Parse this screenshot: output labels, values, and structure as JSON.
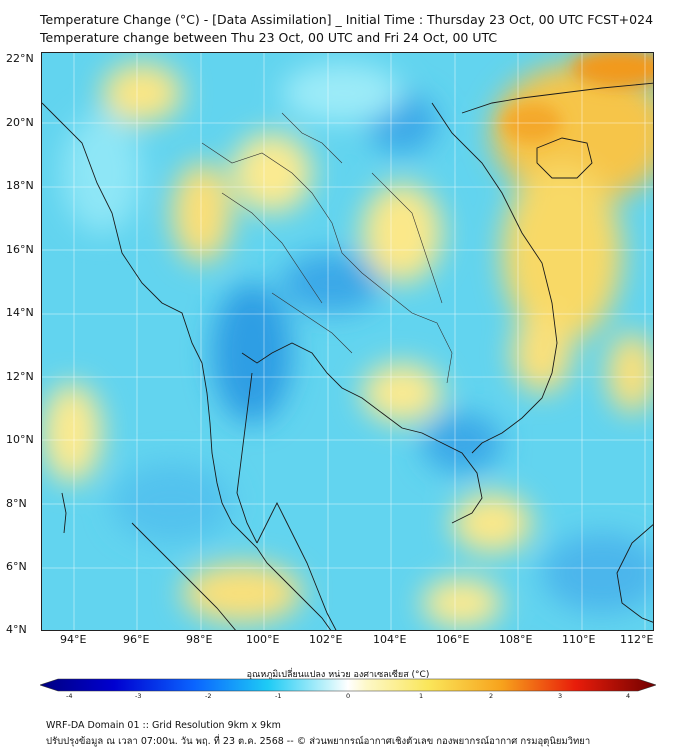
{
  "title_line1": "Temperature Change (°C) - [Data Assimilation] _ Initial Time : Thursday 23 Oct, 00 UTC FCST+024",
  "title_line2": "Temperature change between Thu 23 Oct, 00 UTC and Fri 24 Oct, 00 UTC",
  "lat_labels": [
    "22°N",
    "20°N",
    "18°N",
    "16°N",
    "14°N",
    "12°N",
    "10°N",
    "8°N",
    "6°N",
    "4°N"
  ],
  "lon_labels": [
    "94°E",
    "96°E",
    "98°E",
    "100°E",
    "102°E",
    "104°E",
    "106°E",
    "108°E",
    "110°E",
    "112°E"
  ],
  "colorbar": {
    "title": "อุณหภูมิเปลี่ยนแปลง หน่วย องศาเซลเซียส (°C)",
    "ticks": [
      "-4",
      "-3",
      "-2",
      "-1",
      "0",
      "1",
      "2",
      "3",
      "4"
    ],
    "min": -4,
    "max": 4
  },
  "footer_line1": "WRF-DA Domain 01 :: Grid Resolution 9km x 9km",
  "footer_line2": "ปรับปรุงข้อมูล ณ เวลา 07:00น. วัน พฤ. ที่ 23 ต.ค. 2568 -- © ส่วนพยากรณ์อากาศเชิงตัวเลข กองพยากรณ์อากาศ กรมอุตุนิยมวิทยา",
  "colors": {
    "background_field": "#5ad4f0",
    "warm": "#f5c842",
    "cool": "#1e8fd8",
    "hot": "#f29a1a",
    "coastline": "#1a1a1a"
  }
}
